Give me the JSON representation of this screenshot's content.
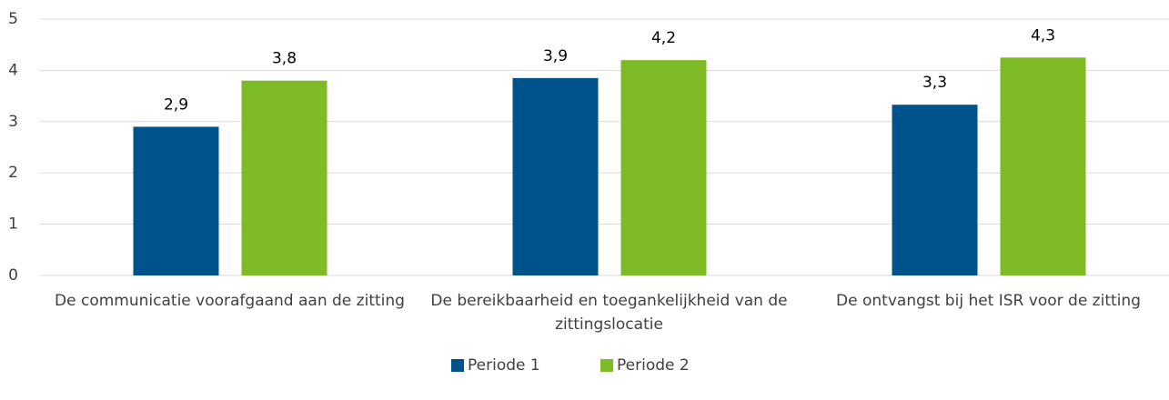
{
  "chart_data": {
    "type": "bar",
    "categories": [
      "De communicatie voorafgaand aan de zitting",
      "De bereikbaarheid en toegankelijkheid van de zittingslocatie",
      "De ontvangst bij het ISR voor de zitting"
    ],
    "series": [
      {
        "name": "Periode 1",
        "color": "#00538a",
        "values": [
          2.9,
          3.85,
          3.33
        ],
        "value_labels": [
          "2,9",
          "3,9",
          "3,3"
        ]
      },
      {
        "name": "Periode 2",
        "color": "#7fba27",
        "values": [
          3.8,
          4.2,
          4.25
        ],
        "value_labels": [
          "3,8",
          "4,2",
          "4,3"
        ]
      }
    ],
    "ylim": [
      0,
      5
    ],
    "yticks": [
      0,
      1,
      2,
      3,
      4,
      5
    ],
    "grid": true,
    "legend": "bottom"
  }
}
